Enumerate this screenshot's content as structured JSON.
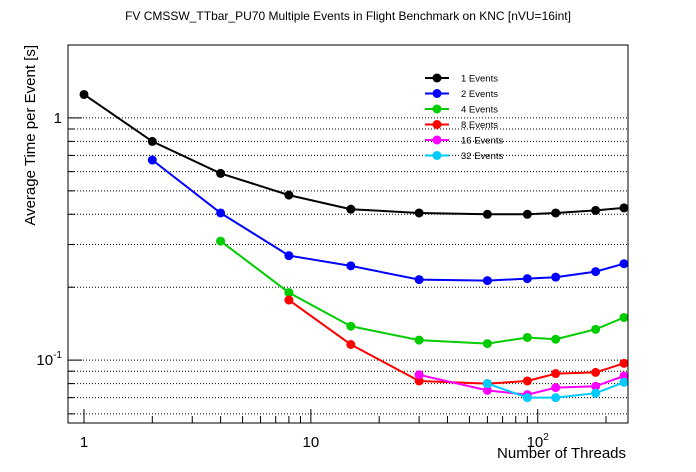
{
  "chart_data": {
    "type": "line",
    "title": "FV CMSSW_TTbar_PU70 Multiple Events in Flight Benchmark on KNC [nVU=16int]",
    "xlabel": "Number of Threads",
    "ylabel": "Average Time per Event [s]",
    "xscale": "log",
    "yscale": "log",
    "xlim": [
      0.85,
      250
    ],
    "ylim": [
      0.055,
      2.0
    ],
    "x_ticks": [
      {
        "value": 1,
        "label": "1"
      },
      {
        "value": 10,
        "label": "10"
      },
      {
        "value": 100,
        "label": "10",
        "exponent": "2"
      }
    ],
    "y_ticks": [
      {
        "value": 1,
        "label": "1"
      },
      {
        "value": 0.1,
        "label": "10",
        "exponent": "-1"
      }
    ],
    "grid": "horizontal dotted",
    "legend_position": "top-right",
    "series": [
      {
        "name": "1 Events",
        "color": "#000000",
        "x": [
          1,
          2,
          4,
          8,
          15,
          30,
          60,
          90,
          120,
          180,
          240
        ],
        "y": [
          1.25,
          0.8,
          0.59,
          0.48,
          0.42,
          0.405,
          0.4,
          0.4,
          0.405,
          0.415,
          0.425
        ]
      },
      {
        "name": "2 Events",
        "color": "#0000ff",
        "x": [
          2,
          4,
          8,
          15,
          30,
          60,
          90,
          120,
          180,
          240
        ],
        "y": [
          0.67,
          0.405,
          0.27,
          0.245,
          0.215,
          0.213,
          0.217,
          0.22,
          0.232,
          0.25
        ]
      },
      {
        "name": "4 Events",
        "color": "#00cc00",
        "x": [
          4,
          8,
          15,
          30,
          60,
          90,
          120,
          180,
          240
        ],
        "y": [
          0.31,
          0.19,
          0.138,
          0.121,
          0.117,
          0.124,
          0.122,
          0.134,
          0.15
        ]
      },
      {
        "name": "8 Events",
        "color": "#ff0000",
        "x": [
          8,
          15,
          30,
          60,
          90,
          120,
          180,
          240
        ],
        "y": [
          0.177,
          0.116,
          0.082,
          0.08,
          0.082,
          0.088,
          0.089,
          0.097
        ]
      },
      {
        "name": "16 Events",
        "color": "#ff00ff",
        "x": [
          30,
          60,
          90,
          120,
          180,
          240
        ],
        "y": [
          0.087,
          0.075,
          0.072,
          0.077,
          0.078,
          0.086
        ]
      },
      {
        "name": "32 Events",
        "color": "#00ccff",
        "x": [
          60,
          90,
          120,
          180,
          240
        ],
        "y": [
          0.08,
          0.07,
          0.07,
          0.073,
          0.081
        ]
      }
    ]
  }
}
